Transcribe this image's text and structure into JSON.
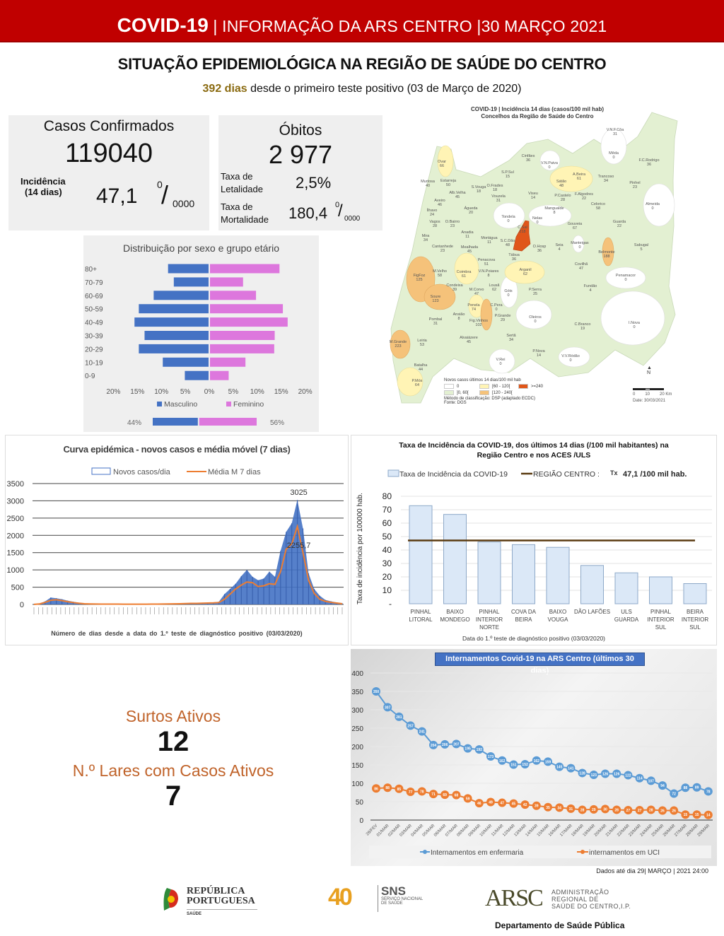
{
  "header": {
    "title_bold": "COVID-19",
    "title_rest": " | INFORMAÇÃO DA ARS CENTRO |30 MARÇO 2021"
  },
  "main_title": "SITUAÇÃO EPIDEMIOLÓGICA NA REGIÃO DE SAÚDE DO CENTRO",
  "subtitle": {
    "days": "392 dias",
    "rest": " desde o primeiro teste positivo (03 de Março de 2020)"
  },
  "casos": {
    "label": "Casos Confirmados",
    "value": "119040",
    "incidence_label_1": "Incidência",
    "incidence_label_2": "(14 dias)",
    "incidence_value": "47,1",
    "unit_sup": "0",
    "unit_slash": "/",
    "unit_sub": "0000"
  },
  "obitos": {
    "label": "Óbitos",
    "value": "2 977",
    "letalidade_label_1": "Taxa de",
    "letalidade_label_2": "Letalidade",
    "letalidade_value": "2,5%",
    "mortalidade_label_1": "Taxa de",
    "mortalidade_label_2": "Mortalidade",
    "mortalidade_value": "180,4",
    "unit_sup": "0",
    "unit_slash": "/",
    "unit_sub": "0000"
  },
  "surtos": {
    "label": "Surtos Ativos",
    "value": "12",
    "lares_label": "N.º Lares com Casos Ativos",
    "lares_value": "7"
  },
  "map": {
    "title_1": "COVID-19 | Incidência 14 dias (casos/100 mil hab)",
    "title_2": "Concelhos da Região de Saúde do Centro",
    "legend_title": "Novos casos últimos 14 dias/100 mil hab",
    "legend": [
      {
        "label": "0",
        "color": "#ffffff"
      },
      {
        "label": "]0, 60[",
        "color": "#e3f0d2"
      },
      {
        "label": "[60 - 120[",
        "color": "#fff4b5"
      },
      {
        "label": "[120 - 240[",
        "color": "#f5c27a"
      },
      {
        "label": ">=240",
        "color": "#e0561a"
      }
    ],
    "method": "Método de classificação: DSP (adaptado ECDC)",
    "source": "Fonte: DGS",
    "scale": [
      "0",
      "10",
      "20 Km"
    ],
    "north": "N",
    "date": "Date: 30/03/2021",
    "municipalities": [
      {
        "name": "V.N.F.Côa",
        "value": "31"
      },
      {
        "name": "Mêda",
        "value": "0"
      },
      {
        "name": "F.C.Rodrigo",
        "value": "36"
      },
      {
        "name": "Cinfães",
        "value": "36"
      },
      {
        "name": "V.N.Paiva",
        "value": "0"
      },
      {
        "name": "Ovar",
        "value": "66"
      },
      {
        "name": "S.P.Sul",
        "value": "15"
      },
      {
        "name": "Sátão",
        "value": "48"
      },
      {
        "name": "A.Beira",
        "value": "61"
      },
      {
        "name": "Trancoso",
        "value": "34"
      },
      {
        "name": "Pinhel",
        "value": "23"
      },
      {
        "name": "Murtosa",
        "value": "40"
      },
      {
        "name": "Estarreja",
        "value": "50"
      },
      {
        "name": "S.Vouga",
        "value": "18"
      },
      {
        "name": "O.Frades",
        "value": "18"
      },
      {
        "name": "Vouzela",
        "value": "31"
      },
      {
        "name": "Viseu",
        "value": "14"
      },
      {
        "name": "P.Castelo",
        "value": "28"
      },
      {
        "name": "F.Algodres",
        "value": "22"
      },
      {
        "name": "Alb.Velha",
        "value": "45"
      },
      {
        "name": "Aveiro",
        "value": "46"
      },
      {
        "name": "Celorico",
        "value": "58"
      },
      {
        "name": "Almeida",
        "value": "0"
      },
      {
        "name": "Ílhavo",
        "value": "24"
      },
      {
        "name": "Águeda",
        "value": "20"
      },
      {
        "name": "Mangualde",
        "value": "8"
      },
      {
        "name": "Tondela",
        "value": "0"
      },
      {
        "name": "Nelas",
        "value": "0"
      },
      {
        "name": "Vagos",
        "value": "28"
      },
      {
        "name": "O.Bairro",
        "value": "23"
      },
      {
        "name": "Gouveia",
        "value": "67"
      },
      {
        "name": "Guarda",
        "value": "22"
      },
      {
        "name": "Mira",
        "value": "34"
      },
      {
        "name": "Anadia",
        "value": "11"
      },
      {
        "name": "Mortágua",
        "value": "11"
      },
      {
        "name": "S.C.Dão",
        "value": "48"
      },
      {
        "name": "C.Sal",
        "value": "218"
      },
      {
        "name": "O.Hosp",
        "value": "36"
      },
      {
        "name": "Seia",
        "value": "4"
      },
      {
        "name": "Manteigas",
        "value": "0"
      },
      {
        "name": "Belmonte",
        "value": "188"
      },
      {
        "name": "Sabugal",
        "value": "5"
      },
      {
        "name": "Cantanhede",
        "value": "23"
      },
      {
        "name": "Mealhada",
        "value": "45"
      },
      {
        "name": "Tábua",
        "value": "36"
      },
      {
        "name": "Penacova",
        "value": "51"
      },
      {
        "name": "Covilhã",
        "value": "47"
      },
      {
        "name": "FigFoz",
        "value": "125"
      },
      {
        "name": "M.Velho",
        "value": "58"
      },
      {
        "name": "Coimbra",
        "value": "61"
      },
      {
        "name": "V.N.Poiares",
        "value": "8"
      },
      {
        "name": "Arganil",
        "value": "62"
      },
      {
        "name": "Penamacor",
        "value": "0"
      },
      {
        "name": "Soure",
        "value": "123"
      },
      {
        "name": "Condeixa",
        "value": "39"
      },
      {
        "name": "M.Corvo",
        "value": "47"
      },
      {
        "name": "Lousã",
        "value": "62"
      },
      {
        "name": "Góis",
        "value": "0"
      },
      {
        "name": "P.Serra",
        "value": "25"
      },
      {
        "name": "Fundão",
        "value": "4"
      },
      {
        "name": "Penela",
        "value": "74"
      },
      {
        "name": "C.Pera",
        "value": "0"
      },
      {
        "name": "Ansião",
        "value": "8"
      },
      {
        "name": "Pombal",
        "value": "31"
      },
      {
        "name": "Fig.Vinhos",
        "value": "102"
      },
      {
        "name": "P.Grande",
        "value": "29"
      },
      {
        "name": "Oleiros",
        "value": "0"
      },
      {
        "name": "C.Branco",
        "value": "19"
      },
      {
        "name": "I.Nova",
        "value": "0"
      },
      {
        "name": "Sertã",
        "value": "34"
      },
      {
        "name": "Alvaiázere",
        "value": "45"
      },
      {
        "name": "M.Grande",
        "value": "223"
      },
      {
        "name": "Leiria",
        "value": "53"
      },
      {
        "name": "P.Nova",
        "value": "14"
      },
      {
        "name": "V.V.Ródão",
        "value": "0"
      },
      {
        "name": "V.Rei",
        "value": "0"
      },
      {
        "name": "Batalha",
        "value": "44"
      },
      {
        "name": "P.Mós",
        "value": "64"
      }
    ]
  },
  "chart_data": [
    {
      "type": "bar",
      "orientation": "horizontal-pyramid",
      "title": "Distribuição por sexo e grupo etário",
      "categories": [
        "80+",
        "70-79",
        "60-69",
        "50-59",
        "40-49",
        "30-39",
        "20-29",
        "10-19",
        "0-9"
      ],
      "series": [
        {
          "name": "Masculino",
          "color": "#4472c4",
          "values": [
            8.6,
            7.4,
            11.6,
            14.7,
            15.6,
            13.5,
            14.7,
            9.7,
            5.1
          ]
        },
        {
          "name": "Feminino",
          "color": "#dd77dd",
          "values": [
            14.5,
            6.9,
            9.6,
            15.2,
            16.2,
            13.5,
            13.4,
            7.4,
            3.9
          ]
        }
      ],
      "xticks": [
        "20%",
        "15%",
        "10%",
        "5%",
        "0%",
        "5%",
        "10%",
        "15%",
        "20%"
      ],
      "xlim": [
        -20,
        20
      ],
      "totals": {
        "Masculino": "44%",
        "Feminino": "56%",
        "male_share": 44
      },
      "legend": "bottom"
    },
    {
      "type": "area-line",
      "title": "Curva epidémica - novos casos e média móvel (7 dias)",
      "xlabel": "Número de dias desde a data do 1.º teste de diagnóstico  positivo  (03/03/2020)",
      "ylim": [
        0,
        3500
      ],
      "yticks": [
        "0",
        "500",
        "1000",
        "1500",
        "2000",
        "2500",
        "3000",
        "3500"
      ],
      "x_days_step": 7,
      "series": [
        {
          "name": "Novos casos/dia",
          "color": "#4472c4",
          "values": [
            5,
            25,
            90,
            200,
            180,
            150,
            110,
            80,
            50,
            30,
            20,
            15,
            12,
            12,
            12,
            12,
            10,
            10,
            10,
            10,
            10,
            12,
            12,
            15,
            20,
            22,
            25,
            30,
            40,
            40,
            45,
            50,
            60,
            80,
            300,
            450,
            600,
            820,
            1000,
            800,
            700,
            750,
            950,
            800,
            1550,
            2100,
            2350,
            3025,
            2200,
            900,
            450,
            250,
            130,
            90,
            60,
            35
          ]
        },
        {
          "name": "Média M 7 dias",
          "color": "#ed7d31",
          "values": [
            2,
            15,
            60,
            120,
            135,
            110,
            80,
            55,
            35,
            20,
            15,
            12,
            10,
            10,
            10,
            10,
            8,
            8,
            8,
            8,
            8,
            10,
            10,
            12,
            15,
            18,
            20,
            25,
            30,
            30,
            35,
            40,
            45,
            55,
            150,
            300,
            450,
            560,
            650,
            630,
            520,
            540,
            600,
            580,
            950,
            1600,
            1750,
            2255.7,
            1500,
            700,
            320,
            150,
            90,
            60,
            40,
            20
          ]
        }
      ],
      "annotations": [
        "3025",
        "2255,7"
      ],
      "legend": "top"
    },
    {
      "type": "bar",
      "title": "Taxa de Incidência da COVID-19, dos últimos 14 dias (/100 mil habitantes) na",
      "title_2": "Região Centro e nos ACES /ULS",
      "ylabel": "Taxa de incidência por 100000 hab.",
      "xlabel": "Data do 1.º  teste de diagnóstico positivo (03/03/2020)",
      "categories": [
        [
          "PINHAL",
          "LITORAL"
        ],
        [
          "BAIXO",
          "MONDEGO"
        ],
        [
          "PINHAL",
          "INTERIOR",
          "NORTE"
        ],
        [
          "COVA DA",
          "BEIRA"
        ],
        [
          "BAIXO",
          "VOUGA"
        ],
        [
          "DÃO LAFÕES"
        ],
        [
          "ULS",
          "GUARDA"
        ],
        [
          "PINHAL",
          "INTERIOR",
          "SUL"
        ],
        [
          "BEIRA",
          "INTERIOR",
          "SUL"
        ]
      ],
      "values": [
        73,
        66.5,
        46,
        44,
        42,
        28.5,
        23,
        20,
        15
      ],
      "reference_line": 47.1,
      "series_names": [
        "Taxa de Incidência da COVID-19",
        "REGIÃO CENTRO :"
      ],
      "legend_tx": "Tx",
      "legend_value": "47,1 /100 mil hab.",
      "ylim": [
        0,
        80
      ],
      "yticks": [
        "-",
        "10",
        "20",
        "30",
        "40",
        "50",
        "60",
        "70",
        "80"
      ],
      "colors": {
        "bar": "#dbe8f7",
        "bar_border": "#8ea9c8",
        "line": "#5a3a10"
      },
      "legend": "top"
    },
    {
      "type": "line",
      "title": "Internamentos Covid-19 na ARS Centro (últimos 30 dias)",
      "x": [
        "28/FEV",
        "01/MAR",
        "02/MAR",
        "03/MAR",
        "04/MAR",
        "05/MAR",
        "06/MAR",
        "07/MAR",
        "08/MAR",
        "09/MAR",
        "10/MAR",
        "11/MAR",
        "12/MAR",
        "13/MAR",
        "14/MAR",
        "15/MAR",
        "16/MAR",
        "17/MAR",
        "18/MAR",
        "19/MAR",
        "20/MAR",
        "21/MAR",
        "22/MAR",
        "23/MAR",
        "24/MAR",
        "25/MAR",
        "26/MAR",
        "27/MAR",
        "28/MAR",
        "29/MAR"
      ],
      "series": [
        {
          "name": "Internamentos em enfermaria",
          "color": "#5b9bd5",
          "values": [
            350,
            307,
            281,
            257,
            241,
            204,
            206,
            207,
            195,
            192,
            173,
            162,
            151,
            152,
            162,
            159,
            145,
            141,
            128,
            123,
            126,
            126,
            122,
            114,
            107,
            94,
            72,
            88,
            89,
            78
          ]
        },
        {
          "name": "internamentos em UCI",
          "color": "#ed7d31",
          "values": [
            86,
            88,
            85,
            77,
            78,
            71,
            69,
            68,
            59,
            46,
            49,
            47,
            45,
            42,
            39,
            35,
            34,
            31,
            28,
            29,
            30,
            28,
            27,
            27,
            28,
            26,
            26,
            15,
            15,
            14
          ]
        }
      ],
      "ylim": [
        0,
        400
      ],
      "yticks": [
        "0",
        "50",
        "100",
        "150",
        "200",
        "250",
        "300",
        "350",
        "400"
      ],
      "legend": "bottom"
    }
  ],
  "footer": {
    "note": "Dados até dia 29| MARÇO | 2021 24:00",
    "rep_1": "REPÚBLICA",
    "rep_2": "PORTUGUESA",
    "rep_3": "SAÚDE",
    "sns_big": "SNS",
    "sns_1": "SERVIÇO NACIONAL",
    "sns_2": "DE SAÚDE",
    "sns_40": "40",
    "arsc_mark": "ARSC",
    "arsc_1": "ADMINISTRAÇÃO",
    "arsc_2": "REGIONAL DE",
    "arsc_3": "SAÚDE DO CENTRO,I.P.",
    "dept": "Departamento de Saúde Pública"
  }
}
